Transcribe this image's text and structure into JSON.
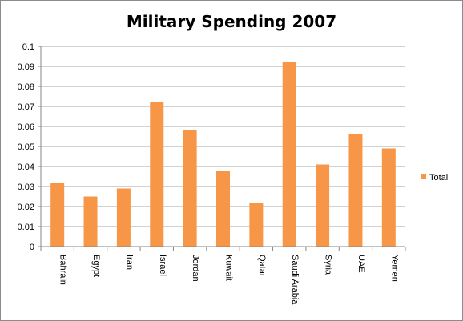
{
  "chart_data": {
    "type": "bar",
    "title": "Military Spending 2007",
    "categories": [
      "Bahrain",
      "Egypt",
      "Iran",
      "Israel",
      "Jordan",
      "Kuwait",
      "Qatar",
      "Saudi Arabia",
      "Syria",
      "UAE",
      "Yemen"
    ],
    "series": [
      {
        "name": "Total",
        "values": [
          0.032,
          0.025,
          0.029,
          0.072,
          0.058,
          0.038,
          0.022,
          0.092,
          0.041,
          0.056,
          0.049
        ]
      }
    ],
    "yticks": [
      "0",
      "0.01",
      "0.02",
      "0.03",
      "0.04",
      "0.05",
      "0.06",
      "0.07",
      "0.08",
      "0.09",
      "0.1"
    ],
    "ylim": [
      0,
      0.1
    ],
    "grid": true,
    "legend_position": "right",
    "colors": {
      "bar": "#f79646",
      "grid": "#a6a6a6",
      "axis": "#868686"
    }
  }
}
